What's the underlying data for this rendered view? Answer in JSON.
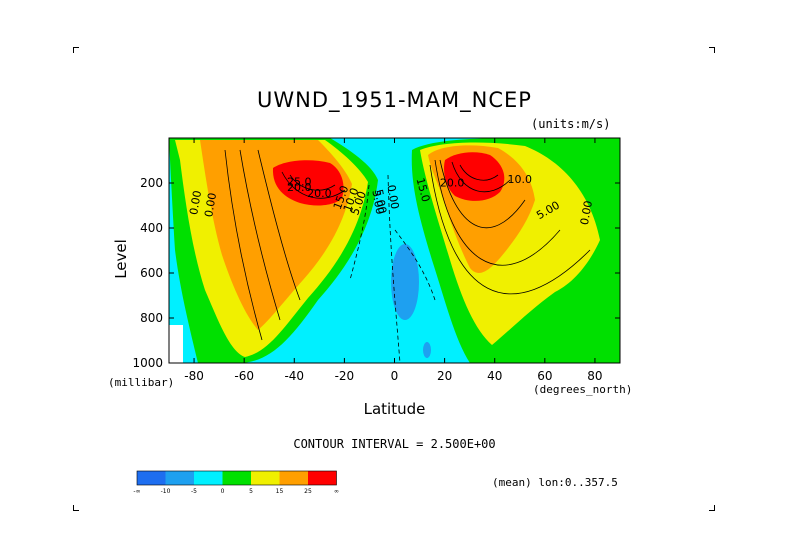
{
  "chart_data": {
    "type": "heatmap",
    "title": "UWND_1951-MAM_NCEP",
    "units": "(units:m/s)",
    "xlabel": "Latitude",
    "x_units": "(degrees_north)",
    "ylabel": "Level",
    "y_units": "(millibar)",
    "xlim": [
      -90,
      90
    ],
    "ylim": [
      1000,
      0
    ],
    "x_ticks": [
      "-80",
      "-60",
      "-40",
      "-20",
      "0",
      "20",
      "40",
      "60",
      "80"
    ],
    "x_tick_values": [
      -80,
      -60,
      -40,
      -20,
      0,
      20,
      40,
      60,
      80
    ],
    "y_ticks": [
      "200",
      "400",
      "600",
      "800",
      "1000"
    ],
    "y_tick_values": [
      200,
      400,
      600,
      800,
      1000
    ],
    "contour_interval_text": "CONTOUR INTERVAL = 2.500E+00",
    "mean_text": "(mean) lon:0..357.5",
    "contour_labels": [
      "25.0",
      "20.0",
      "20.0",
      "15.0",
      "10.0",
      "5.00",
      "0.00",
      "0.00",
      "5.00",
      "0.00",
      "5.00",
      "20.0",
      "15.0",
      "10.0",
      "5.00",
      "0.00"
    ],
    "jets": [
      {
        "lat": -32,
        "level": 195,
        "max": 27.5
      },
      {
        "lat": 28,
        "level": 185,
        "max": 30
      }
    ],
    "colorbar": {
      "labels": [
        "-∞",
        "-10",
        "-5",
        "0",
        "5",
        "15",
        "25",
        "∞"
      ],
      "colors": [
        "#1e6ef0",
        "#1ea0f0",
        "#00f0ff",
        "#00e000",
        "#f0f000",
        "#ff9f00",
        "#ff0000"
      ]
    }
  }
}
